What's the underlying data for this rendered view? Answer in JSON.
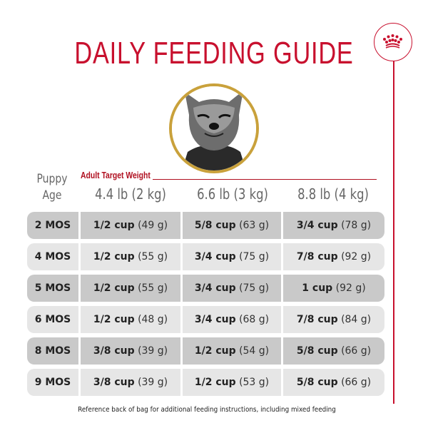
{
  "title": "DAILY FEEDING GUIDE",
  "brand": {
    "logo_icon": "crown-icon",
    "color": "#c8102e"
  },
  "image": {
    "icon": "puppy-photo",
    "border_color": "#c9a13b"
  },
  "table": {
    "age_header": [
      "Puppy",
      "Age"
    ],
    "weight_label": "Adult Target Weight",
    "columns": [
      "4.4 lb (2 kg)",
      "6.6 lb (3 kg)",
      "8.8 lb (4 kg)"
    ],
    "rows": [
      {
        "age": "2 MOS",
        "cells": [
          {
            "cup": "1/2 cup",
            "g": "(49 g)"
          },
          {
            "cup": "5/8 cup",
            "g": "(63 g)"
          },
          {
            "cup": "3/4 cup",
            "g": "(78 g)"
          }
        ]
      },
      {
        "age": "4 MOS",
        "cells": [
          {
            "cup": "1/2 cup",
            "g": "(55 g)"
          },
          {
            "cup": "3/4 cup",
            "g": "(75 g)"
          },
          {
            "cup": "7/8 cup",
            "g": "(92 g)"
          }
        ]
      },
      {
        "age": "5 MOS",
        "cells": [
          {
            "cup": "1/2 cup",
            "g": "(55 g)"
          },
          {
            "cup": "3/4 cup",
            "g": "(75 g)"
          },
          {
            "cup": "1 cup",
            "g": "(92 g)"
          }
        ]
      },
      {
        "age": "6 MOS",
        "cells": [
          {
            "cup": "1/2 cup",
            "g": "(48 g)"
          },
          {
            "cup": "3/4 cup",
            "g": "(68 g)"
          },
          {
            "cup": "7/8 cup",
            "g": "(84 g)"
          }
        ]
      },
      {
        "age": "8 MOS",
        "cells": [
          {
            "cup": "3/8 cup",
            "g": "(39 g)"
          },
          {
            "cup": "1/2 cup",
            "g": "(54 g)"
          },
          {
            "cup": "5/8 cup",
            "g": "(66 g)"
          }
        ]
      },
      {
        "age": "9 MOS",
        "cells": [
          {
            "cup": "3/8 cup",
            "g": "(39 g)"
          },
          {
            "cup": "1/2 cup",
            "g": "(53 g)"
          },
          {
            "cup": "5/8 cup",
            "g": "(66 g)"
          }
        ]
      }
    ]
  },
  "footer": "Reference back of bag for additional feeding instructions, including mixed feeding"
}
